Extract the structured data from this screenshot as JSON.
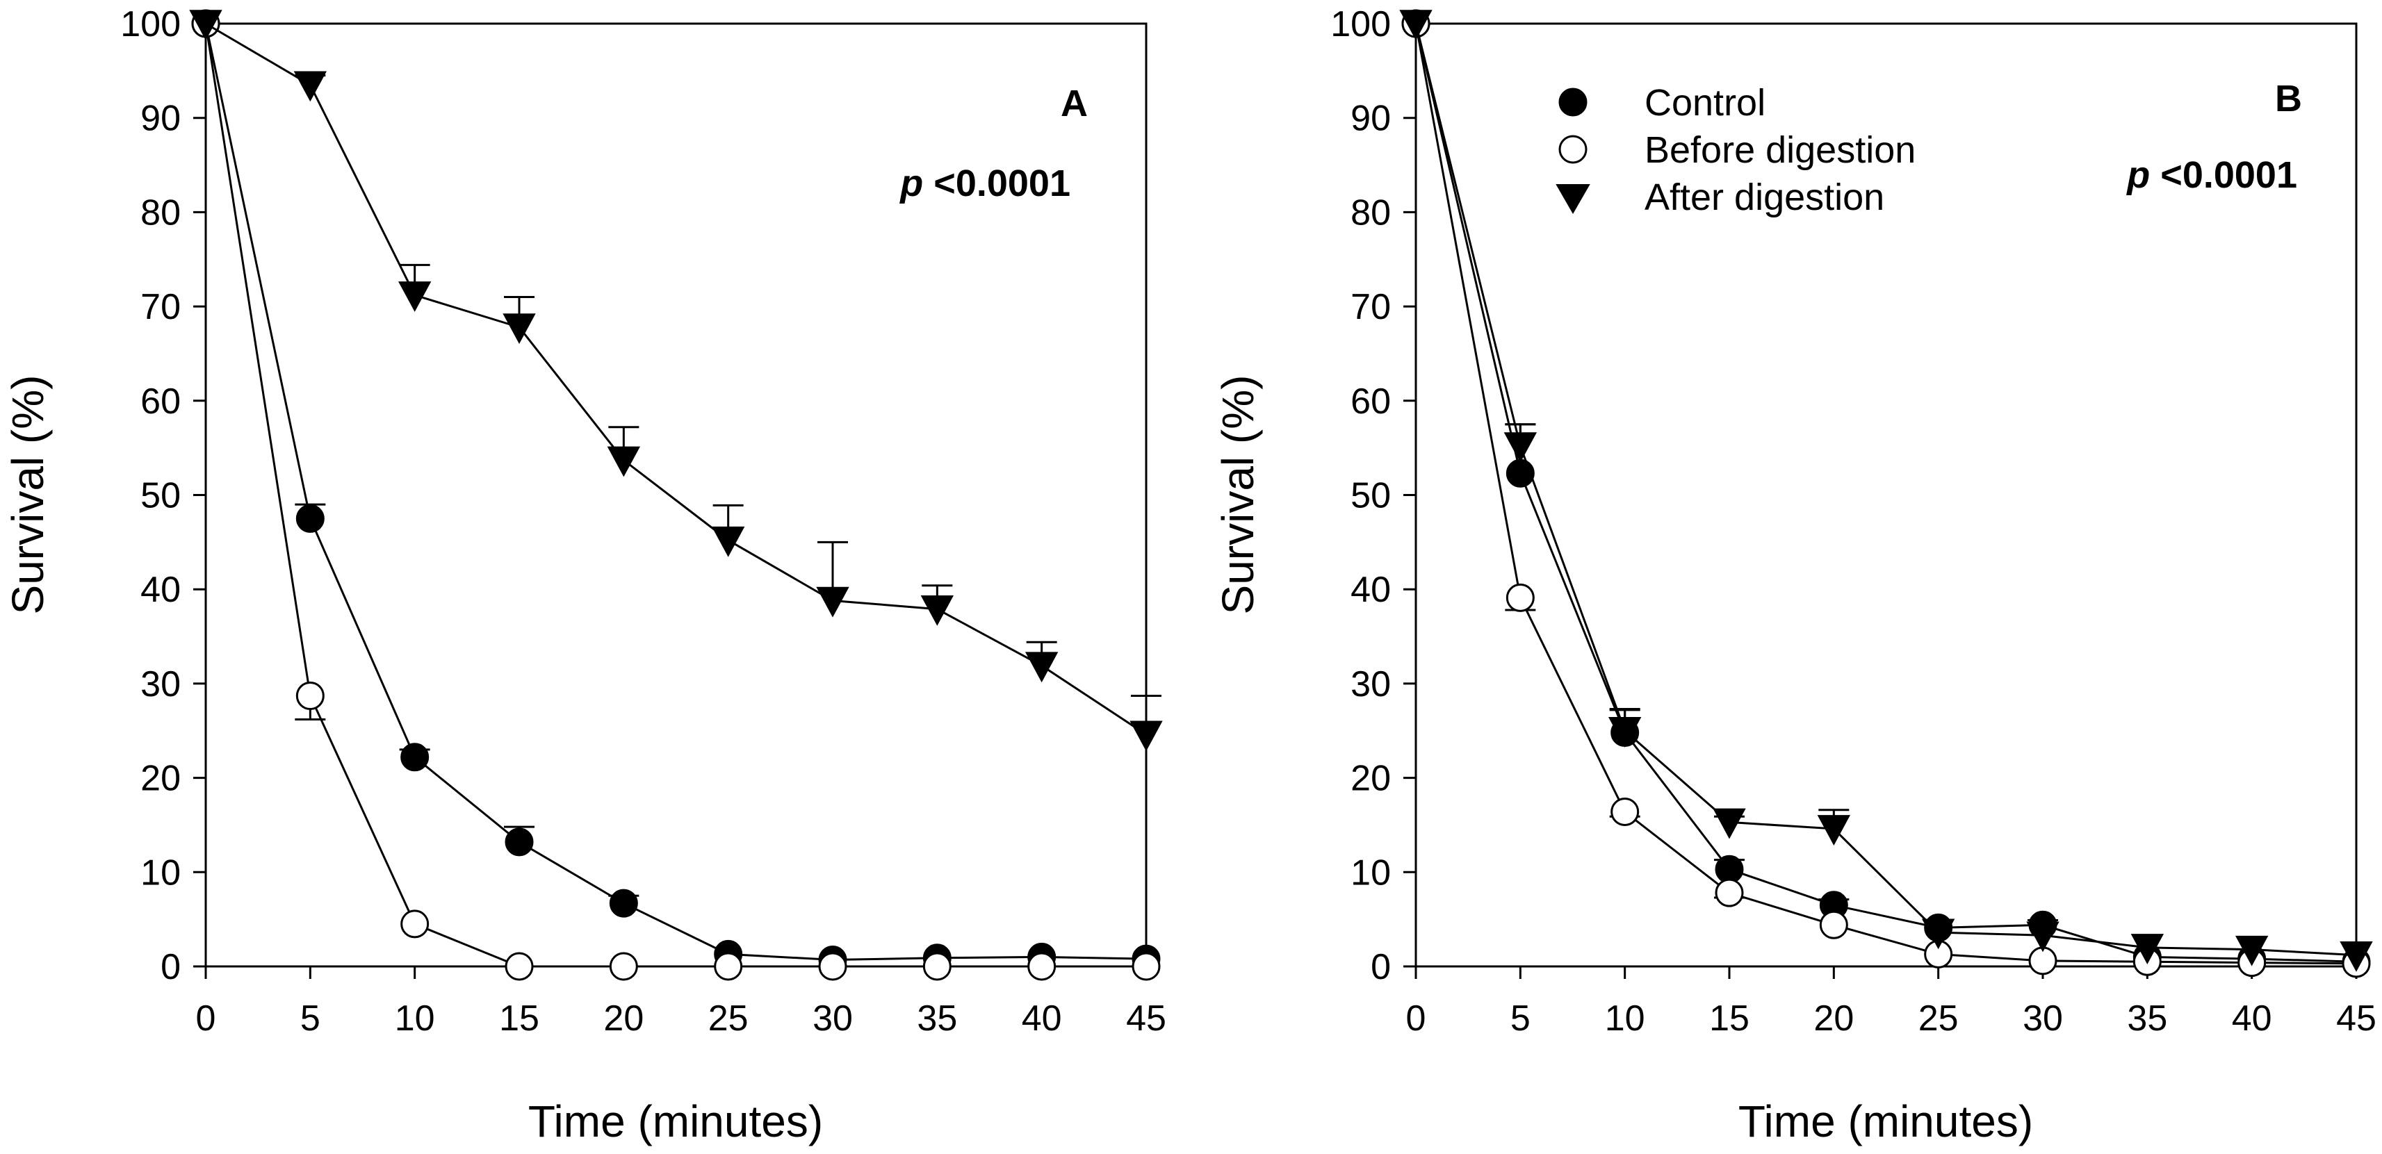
{
  "chart_data": [
    {
      "panel": "A",
      "type": "line",
      "xlabel": "Time (minutes)",
      "ylabel": "Survival (%)",
      "xlim": [
        0,
        45
      ],
      "ylim": [
        0,
        100
      ],
      "xticks": [
        0,
        5,
        10,
        15,
        20,
        25,
        30,
        35,
        40,
        45
      ],
      "yticks": [
        0,
        10,
        20,
        30,
        40,
        50,
        60,
        70,
        80,
        90,
        100
      ],
      "grid": false,
      "annotation": {
        "prefix": "p",
        "text": " <0.0001"
      },
      "series": [
        {
          "name": "Control",
          "marker": "filled-circle",
          "x": [
            0,
            5,
            10,
            15,
            20,
            25,
            30,
            35,
            40,
            45
          ],
          "values": [
            100,
            47.5,
            22.2,
            13.2,
            6.7,
            1.3,
            0.7,
            0.9,
            1.0,
            0.8
          ],
          "errors": [
            0,
            1.5,
            0.8,
            1.6,
            0.8,
            0.3,
            0.2,
            0.2,
            0.2,
            0.2
          ]
        },
        {
          "name": "Before digestion",
          "marker": "open-circle",
          "x": [
            0,
            5,
            10,
            15,
            20,
            25,
            30,
            35,
            40,
            45
          ],
          "values": [
            100,
            28.7,
            4.5,
            0,
            0,
            0,
            0,
            0,
            0,
            0
          ],
          "errors": [
            0,
            2.5,
            0.4,
            0,
            0,
            0,
            0,
            0,
            0,
            0
          ]
        },
        {
          "name": "After digestion",
          "marker": "filled-triangle-down",
          "x": [
            0,
            5,
            10,
            15,
            20,
            25,
            30,
            35,
            40,
            45
          ],
          "values": [
            100,
            93.5,
            71.2,
            67.8,
            53.7,
            45.2,
            38.8,
            37.9,
            31.9,
            24.6
          ],
          "errors": [
            0,
            1.0,
            3.2,
            3.2,
            3.5,
            3.7,
            6.2,
            2.5,
            2.5,
            4.1
          ]
        }
      ]
    },
    {
      "panel": "B",
      "type": "line",
      "xlabel": "Time (minutes)",
      "ylabel": "Survival (%)",
      "xlim": [
        0,
        45
      ],
      "ylim": [
        0,
        100
      ],
      "xticks": [
        0,
        5,
        10,
        15,
        20,
        25,
        30,
        35,
        40,
        45
      ],
      "yticks": [
        0,
        10,
        20,
        30,
        40,
        50,
        60,
        70,
        80,
        90,
        100
      ],
      "grid": false,
      "legend_position": "top-left",
      "annotation": {
        "prefix": "p",
        "text": " <0.0001"
      },
      "series": [
        {
          "name": "Control",
          "marker": "filled-circle",
          "x": [
            0,
            5,
            10,
            15,
            20,
            25,
            30,
            35,
            40,
            45
          ],
          "values": [
            100,
            52.3,
            24.8,
            10.3,
            6.5,
            4.1,
            4.4,
            1.0,
            0.8,
            0.5
          ],
          "errors": [
            0,
            5.2,
            2.4,
            1.0,
            0.6,
            0.4,
            0.5,
            0.2,
            0.2,
            0.1
          ]
        },
        {
          "name": "Before digestion",
          "marker": "open-circle",
          "x": [
            0,
            5,
            10,
            15,
            20,
            25,
            30,
            35,
            40,
            45
          ],
          "values": [
            100,
            39.1,
            16.4,
            7.8,
            4.4,
            1.3,
            0.6,
            0.5,
            0.4,
            0.3
          ],
          "errors": [
            0,
            1.3,
            0.5,
            0.5,
            0.4,
            0.2,
            0.1,
            0.1,
            0.1,
            0.1
          ]
        },
        {
          "name": "After digestion",
          "marker": "filled-triangle-down",
          "x": [
            0,
            5,
            10,
            15,
            20,
            25,
            30,
            35,
            40,
            45
          ],
          "values": [
            100,
            55.2,
            25.0,
            15.3,
            14.6,
            3.6,
            3.3,
            2.0,
            1.8,
            1.2
          ],
          "errors": [
            0,
            2.3,
            2.3,
            0.6,
            2.0,
            0.3,
            0.3,
            0.2,
            0.2,
            0.2
          ]
        }
      ]
    }
  ]
}
